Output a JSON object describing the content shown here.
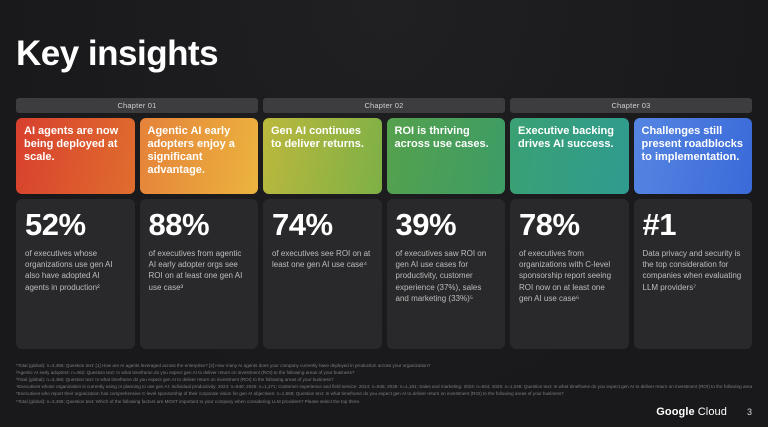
{
  "page": {
    "title": "Key insights",
    "page_number": "3",
    "brand_google": "Google",
    "brand_cloud": "Cloud"
  },
  "chapters": [
    {
      "label": "Chapter 01"
    },
    {
      "label": "Chapter 02"
    },
    {
      "label": "Chapter 03"
    }
  ],
  "cards": [
    {
      "headline": "AI agents are now being deployed at scale.",
      "stat": "52%",
      "description": "of executives whose organizations use gen AI also have adopted AI agents in production²",
      "gradient_from": "#d8402e",
      "gradient_to": "#e06d2e"
    },
    {
      "headline": "Agentic AI early adopters enjoy a significant advantage.",
      "stat": "88%",
      "description": "of executives from agentic AI early adopter orgs see ROI on at least one gen AI use case³",
      "gradient_from": "#e5823a",
      "gradient_to": "#ecb43e"
    },
    {
      "headline": "Gen AI continues to deliver returns.",
      "stat": "74%",
      "description": "of executives see ROI on at least one gen AI use case⁴",
      "gradient_from": "#bcb83d",
      "gradient_to": "#7db046"
    },
    {
      "headline": "ROI is thriving across use cases.",
      "stat": "39%",
      "description": "of executives saw ROI on gen AI use cases for productivity, customer experience (37%), sales and marketing (33%)⁵",
      "gradient_from": "#55a14d",
      "gradient_to": "#3d9c66"
    },
    {
      "headline": "Executive backing drives AI success.",
      "stat": "78%",
      "description": "of executives from organizations with C-level sponsorship report seeing ROI now on at least one gen AI use case⁶",
      "gradient_from": "#3aa173",
      "gradient_to": "#309b90"
    },
    {
      "headline": "Challenges still present roadblocks to implementation.",
      "stat": "#1",
      "description": "Data privacy and security is the top consideration for companies when evaluating LLM providers⁷",
      "gradient_from": "#5585e2",
      "gradient_to": "#3a6ad8"
    }
  ],
  "footnotes": [
    "*Total (global): n=3,466; Question text: [1] How are AI agents leveraged across the enterprise? [2] How many AI agents does your company currently have deployed in production across your organization?",
    "²Agentic AI early adopters: n=462; Question text: In what timeframe do you expect gen AI to deliver return on investment (ROI) to the following areas of your business?",
    "³Total (global): n=3,466; Question text: In what timeframe do you expect gen AI to deliver return on investment (ROI) to the following areas of your business?",
    "⁴Executives whose organization is currently using or planning to use gen AI: Individual productivity: 2024: n=940; 2025: n=1,271; Customer experience and field service: 2024: n=946; 2025: n=1,181; Sales and marketing: 2024: n=934; 2025: n=1,046; Question text: In what timeframe do you expect gen AI to deliver return on investment (ROI) to the following areas of your business?",
    "⁵Executives who report their organization has comprehensive C-level sponsorship of their corporate vision for gen AI objectives: n=1,569; Question text: In what timeframe do you expect gen AI to deliver return on investment (ROI) to the following areas of your business?",
    "⁶Total (global): n=3,466; Question text: Which of the following factors are MOST important to your company when considering LLM providers? Please select the top three."
  ]
}
